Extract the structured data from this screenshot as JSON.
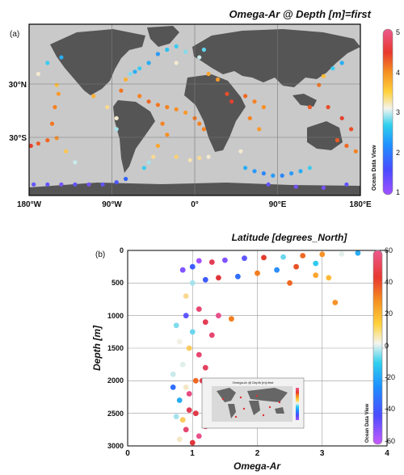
{
  "panel_a": {
    "tag": "(a)",
    "title": "Omega-Ar @ Depth [m]=first",
    "x_ticks": [
      "180°W",
      "90°W",
      "0°",
      "90°E",
      "180°E"
    ],
    "y_ticks": [
      "30°N",
      "30°S"
    ],
    "colorbar_ticks": [
      "5",
      "4",
      "3",
      "2",
      "1"
    ],
    "watermark": "Ocean Data View",
    "colors": {
      "ocean": "#c9c9c9",
      "land": "#545454"
    }
  },
  "panel_b": {
    "tag": "(b)",
    "title": "Latitude [degrees_North]",
    "xlabel": "Omega-Ar",
    "ylabel": "Depth [m]",
    "x_ticks": [
      "0",
      "1",
      "2",
      "3",
      "4"
    ],
    "y_ticks": [
      "0",
      "500",
      "1000",
      "1500",
      "2000",
      "2500",
      "3000"
    ],
    "colorbar_ticks": [
      "60",
      "40",
      "20",
      "0",
      "-20",
      "-40",
      "-60"
    ],
    "watermark": "Ocean Data View",
    "inset_title": "Omega-Ar @ Depth [m]=first"
  },
  "chart_data": [
    {
      "type": "scatter",
      "title": "Omega-Ar @ Depth [m]=first",
      "xlabel": "",
      "ylabel": "",
      "xlim": [
        -180,
        180
      ],
      "ylim": [
        -70,
        85
      ],
      "color_scale": {
        "label": "Omega-Ar",
        "range": [
          1,
          5
        ],
        "stops": [
          "#9b4cff",
          "#2f5cff",
          "#27c8f0",
          "#f2f2ea",
          "#ffbf3a",
          "#f47b1e",
          "#e03030",
          "#e8508a"
        ]
      },
      "points": [
        {
          "lon": -150,
          "lat": 30,
          "v": 3.3
        },
        {
          "lon": -148,
          "lat": 22,
          "v": 3.6
        },
        {
          "lon": -152,
          "lat": 10,
          "v": 3.8
        },
        {
          "lon": -155,
          "lat": -5,
          "v": 3.9
        },
        {
          "lon": -150,
          "lat": -18,
          "v": 3.7
        },
        {
          "lon": -160,
          "lat": -20,
          "v": 4.0
        },
        {
          "lon": -170,
          "lat": -23,
          "v": 4.1
        },
        {
          "lon": -178,
          "lat": -25,
          "v": 4.3
        },
        {
          "lon": -140,
          "lat": -30,
          "v": 3.2
        },
        {
          "lon": -130,
          "lat": -40,
          "v": 2.6
        },
        {
          "lon": -175,
          "lat": -60,
          "v": 1.3
        },
        {
          "lon": -160,
          "lat": -60,
          "v": 1.3
        },
        {
          "lon": -145,
          "lat": -60,
          "v": 1.2
        },
        {
          "lon": -130,
          "lat": -60,
          "v": 1.3
        },
        {
          "lon": -115,
          "lat": -60,
          "v": 1.2
        },
        {
          "lon": -100,
          "lat": -60,
          "v": 1.3
        },
        {
          "lon": -85,
          "lat": -58,
          "v": 1.4
        },
        {
          "lon": -75,
          "lat": -55,
          "v": 1.6
        },
        {
          "lon": -110,
          "lat": 20,
          "v": 3.4
        },
        {
          "lon": -95,
          "lat": 10,
          "v": 3.0
        },
        {
          "lon": -85,
          "lat": 0,
          "v": 2.8
        },
        {
          "lon": -85,
          "lat": -10,
          "v": 2.5
        },
        {
          "lon": -80,
          "lat": 25,
          "v": 3.9
        },
        {
          "lon": -75,
          "lat": 35,
          "v": 3.4
        },
        {
          "lon": -70,
          "lat": 40,
          "v": 2.4
        },
        {
          "lon": -65,
          "lat": 42,
          "v": 2.0
        },
        {
          "lon": -60,
          "lat": 45,
          "v": 2.2
        },
        {
          "lon": -50,
          "lat": 50,
          "v": 2.0
        },
        {
          "lon": -40,
          "lat": 58,
          "v": 1.9
        },
        {
          "lon": -30,
          "lat": 62,
          "v": 2.1
        },
        {
          "lon": -20,
          "lat": 65,
          "v": 2.2
        },
        {
          "lon": -10,
          "lat": 60,
          "v": 2.4
        },
        {
          "lon": -20,
          "lat": 50,
          "v": 2.8
        },
        {
          "lon": -60,
          "lat": 20,
          "v": 3.8
        },
        {
          "lon": -50,
          "lat": 15,
          "v": 4.0
        },
        {
          "lon": -40,
          "lat": 12,
          "v": 3.9
        },
        {
          "lon": -30,
          "lat": 10,
          "v": 3.8
        },
        {
          "lon": -20,
          "lat": 8,
          "v": 3.7
        },
        {
          "lon": -10,
          "lat": 5,
          "v": 3.6
        },
        {
          "lon": -35,
          "lat": -5,
          "v": 3.8
        },
        {
          "lon": -30,
          "lat": -15,
          "v": 3.7
        },
        {
          "lon": -40,
          "lat": -25,
          "v": 3.5
        },
        {
          "lon": -45,
          "lat": -35,
          "v": 3.0
        },
        {
          "lon": -50,
          "lat": -40,
          "v": 2.5
        },
        {
          "lon": -55,
          "lat": -45,
          "v": 2.2
        },
        {
          "lon": -20,
          "lat": -35,
          "v": 3.1
        },
        {
          "lon": -5,
          "lat": -38,
          "v": 2.9
        },
        {
          "lon": 5,
          "lat": -36,
          "v": 3.0
        },
        {
          "lon": 15,
          "lat": -35,
          "v": 2.8
        },
        {
          "lon": 5,
          "lat": -5,
          "v": 3.8
        },
        {
          "lon": 0,
          "lat": 0,
          "v": 3.9
        },
        {
          "lon": 10,
          "lat": -10,
          "v": 3.8
        },
        {
          "lon": 5,
          "lat": 55,
          "v": 2.6
        },
        {
          "lon": 10,
          "lat": 62,
          "v": 2.3
        },
        {
          "lon": 15,
          "lat": 40,
          "v": 3.5
        },
        {
          "lon": 25,
          "lat": 35,
          "v": 3.6
        },
        {
          "lon": 35,
          "lat": 22,
          "v": 4.2
        },
        {
          "lon": 40,
          "lat": 15,
          "v": 4.3
        },
        {
          "lon": 55,
          "lat": 20,
          "v": 4.0
        },
        {
          "lon": 65,
          "lat": 15,
          "v": 3.8
        },
        {
          "lon": 75,
          "lat": 10,
          "v": 3.7
        },
        {
          "lon": 60,
          "lat": 0,
          "v": 3.8
        },
        {
          "lon": 70,
          "lat": -10,
          "v": 3.6
        },
        {
          "lon": 50,
          "lat": -30,
          "v": 2.8
        },
        {
          "lon": 55,
          "lat": -45,
          "v": 2.0
        },
        {
          "lon": 65,
          "lat": -48,
          "v": 1.9
        },
        {
          "lon": 75,
          "lat": -50,
          "v": 1.8
        },
        {
          "lon": 85,
          "lat": -52,
          "v": 1.9
        },
        {
          "lon": 95,
          "lat": -52,
          "v": 1.8
        },
        {
          "lon": 105,
          "lat": -50,
          "v": 1.9
        },
        {
          "lon": 115,
          "lat": -48,
          "v": 2.0
        },
        {
          "lon": 125,
          "lat": -45,
          "v": 2.2
        },
        {
          "lon": 80,
          "lat": -60,
          "v": 1.3
        },
        {
          "lon": 110,
          "lat": -62,
          "v": 1.2
        },
        {
          "lon": 140,
          "lat": -63,
          "v": 1.2
        },
        {
          "lon": 165,
          "lat": -60,
          "v": 1.3
        },
        {
          "lon": 135,
          "lat": 30,
          "v": 3.9
        },
        {
          "lon": 140,
          "lat": 38,
          "v": 3.3
        },
        {
          "lon": 150,
          "lat": 45,
          "v": 2.2
        },
        {
          "lon": 160,
          "lat": 50,
          "v": 2.0
        },
        {
          "lon": 125,
          "lat": 10,
          "v": 4.1
        },
        {
          "lon": 145,
          "lat": 10,
          "v": 4.2
        },
        {
          "lon": 160,
          "lat": 0,
          "v": 4.3
        },
        {
          "lon": 170,
          "lat": -10,
          "v": 4.2
        },
        {
          "lon": 155,
          "lat": -20,
          "v": 4.1
        },
        {
          "lon": 165,
          "lat": -25,
          "v": 4.0
        },
        {
          "lon": 175,
          "lat": -30,
          "v": 3.8
        },
        {
          "lon": -170,
          "lat": 40,
          "v": 2.8
        },
        {
          "lon": -160,
          "lat": 50,
          "v": 2.2
        },
        {
          "lon": -145,
          "lat": 55,
          "v": 2.0
        }
      ]
    },
    {
      "type": "scatter",
      "title": "Latitude [degrees_North]",
      "xlabel": "Omega-Ar",
      "ylabel": "Depth [m]",
      "xlim": [
        0,
        4
      ],
      "ylim": [
        0,
        3000
      ],
      "y_reversed": true,
      "grid": true,
      "color_scale": {
        "label": "Latitude [degrees_North]",
        "range": [
          -60,
          60
        ],
        "stops": [
          "#a350ff",
          "#2f5cff",
          "#27c8f0",
          "#f2f2ea",
          "#ffbf3a",
          "#f47b1e",
          "#e03030",
          "#e8508a"
        ]
      },
      "points": [
        {
          "x": 3.55,
          "y": 40,
          "lat": -30
        },
        {
          "x": 3.3,
          "y": 55,
          "lat": -10
        },
        {
          "x": 3.0,
          "y": 60,
          "lat": 20
        },
        {
          "x": 2.7,
          "y": 80,
          "lat": 30
        },
        {
          "x": 2.4,
          "y": 100,
          "lat": -20
        },
        {
          "x": 2.1,
          "y": 110,
          "lat": 40
        },
        {
          "x": 1.8,
          "y": 120,
          "lat": -50
        },
        {
          "x": 1.5,
          "y": 150,
          "lat": -55
        },
        {
          "x": 1.3,
          "y": 180,
          "lat": 50
        },
        {
          "x": 1.1,
          "y": 160,
          "lat": -60
        },
        {
          "x": 2.9,
          "y": 200,
          "lat": -25
        },
        {
          "x": 2.6,
          "y": 250,
          "lat": 35
        },
        {
          "x": 2.3,
          "y": 300,
          "lat": -35
        },
        {
          "x": 2.0,
          "y": 350,
          "lat": 25
        },
        {
          "x": 1.7,
          "y": 400,
          "lat": -40
        },
        {
          "x": 1.4,
          "y": 420,
          "lat": 45
        },
        {
          "x": 1.2,
          "y": 450,
          "lat": -45
        },
        {
          "x": 3.1,
          "y": 420,
          "lat": 10
        },
        {
          "x": 3.2,
          "y": 800,
          "lat": 20
        },
        {
          "x": 1.0,
          "y": 500,
          "lat": -15
        },
        {
          "x": 0.9,
          "y": 700,
          "lat": 0
        },
        {
          "x": 1.1,
          "y": 900,
          "lat": 55
        },
        {
          "x": 0.9,
          "y": 1000,
          "lat": -50
        },
        {
          "x": 1.2,
          "y": 1100,
          "lat": 50
        },
        {
          "x": 1.0,
          "y": 1250,
          "lat": -20
        },
        {
          "x": 0.95,
          "y": 1500,
          "lat": 5
        },
        {
          "x": 1.1,
          "y": 1600,
          "lat": 55
        },
        {
          "x": 0.85,
          "y": 1750,
          "lat": -10
        },
        {
          "x": 1.05,
          "y": 2000,
          "lat": 30
        },
        {
          "x": 0.9,
          "y": 2100,
          "lat": -5
        },
        {
          "x": 0.8,
          "y": 2300,
          "lat": -30
        },
        {
          "x": 0.95,
          "y": 2450,
          "lat": 50
        },
        {
          "x": 0.85,
          "y": 2600,
          "lat": 5
        },
        {
          "x": 0.9,
          "y": 2750,
          "lat": 55
        },
        {
          "x": 0.8,
          "y": 2900,
          "lat": -5
        },
        {
          "x": 1.0,
          "y": 2950,
          "lat": 45
        },
        {
          "x": 1.4,
          "y": 1000,
          "lat": 60
        },
        {
          "x": 1.6,
          "y": 1050,
          "lat": 25
        },
        {
          "x": 1.3,
          "y": 1300,
          "lat": 55
        },
        {
          "x": 1.2,
          "y": 1800,
          "lat": 52
        },
        {
          "x": 1.15,
          "y": 2000,
          "lat": 48
        },
        {
          "x": 0.95,
          "y": 2200,
          "lat": 58
        },
        {
          "x": 1.05,
          "y": 2500,
          "lat": 48
        },
        {
          "x": 1.2,
          "y": 2700,
          "lat": 52
        },
        {
          "x": 1.1,
          "y": 2850,
          "lat": 60
        },
        {
          "x": 0.75,
          "y": 1150,
          "lat": -18
        },
        {
          "x": 0.8,
          "y": 1400,
          "lat": -8
        },
        {
          "x": 0.7,
          "y": 1900,
          "lat": -12
        },
        {
          "x": 0.75,
          "y": 2550,
          "lat": -15
        },
        {
          "x": 0.7,
          "y": 2100,
          "lat": -40
        },
        {
          "x": 0.85,
          "y": 300,
          "lat": -55
        },
        {
          "x": 1.0,
          "y": 250,
          "lat": -45
        },
        {
          "x": 2.5,
          "y": 500,
          "lat": 30
        },
        {
          "x": 2.9,
          "y": 380,
          "lat": 15
        }
      ]
    }
  ]
}
